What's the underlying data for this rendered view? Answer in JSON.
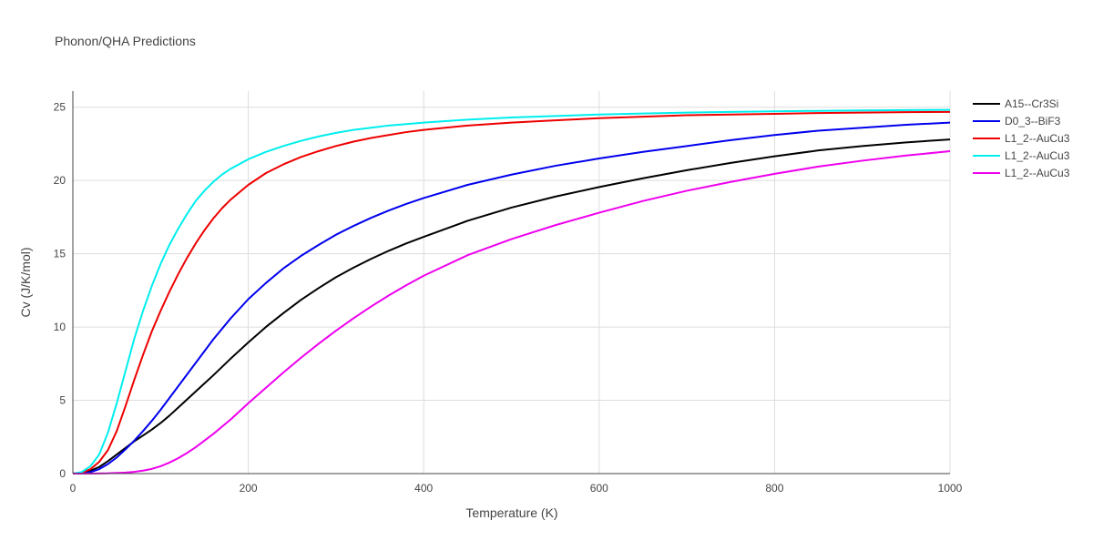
{
  "chart_data": {
    "type": "line",
    "title": "Phonon/QHA Predictions",
    "xlabel": "Temperature (K)",
    "ylabel": "Cv (J/K/mol)",
    "xlim": [
      0,
      1000
    ],
    "ylim": [
      0,
      26.1
    ],
    "xticks": [
      0,
      200,
      400,
      600,
      800,
      1000
    ],
    "yticks": [
      0,
      5,
      10,
      15,
      20,
      25
    ],
    "grid": true,
    "legend_position": "top-right",
    "series": [
      {
        "name": "A15--Cr3Si",
        "color": "#000000",
        "points": [
          [
            0,
            0
          ],
          [
            10,
            0.05
          ],
          [
            20,
            0.2
          ],
          [
            30,
            0.45
          ],
          [
            40,
            0.85
          ],
          [
            50,
            1.3
          ],
          [
            60,
            1.75
          ],
          [
            70,
            2.2
          ],
          [
            80,
            2.6
          ],
          [
            90,
            3.0
          ],
          [
            100,
            3.45
          ],
          [
            110,
            3.95
          ],
          [
            120,
            4.5
          ],
          [
            130,
            5.05
          ],
          [
            140,
            5.6
          ],
          [
            150,
            6.15
          ],
          [
            160,
            6.7
          ],
          [
            180,
            7.85
          ],
          [
            200,
            8.95
          ],
          [
            220,
            10.0
          ],
          [
            240,
            10.95
          ],
          [
            260,
            11.85
          ],
          [
            280,
            12.65
          ],
          [
            300,
            13.4
          ],
          [
            320,
            14.05
          ],
          [
            340,
            14.65
          ],
          [
            360,
            15.2
          ],
          [
            380,
            15.7
          ],
          [
            400,
            16.15
          ],
          [
            450,
            17.25
          ],
          [
            500,
            18.15
          ],
          [
            550,
            18.9
          ],
          [
            600,
            19.55
          ],
          [
            650,
            20.15
          ],
          [
            700,
            20.7
          ],
          [
            750,
            21.2
          ],
          [
            800,
            21.65
          ],
          [
            850,
            22.05
          ],
          [
            900,
            22.35
          ],
          [
            950,
            22.6
          ],
          [
            1000,
            22.8
          ]
        ]
      },
      {
        "name": "D0_3--BiF3",
        "color": "#0000ee",
        "points": [
          [
            0,
            0
          ],
          [
            10,
            0.02
          ],
          [
            20,
            0.1
          ],
          [
            30,
            0.3
          ],
          [
            40,
            0.65
          ],
          [
            50,
            1.1
          ],
          [
            60,
            1.65
          ],
          [
            70,
            2.25
          ],
          [
            80,
            2.9
          ],
          [
            90,
            3.6
          ],
          [
            100,
            4.35
          ],
          [
            110,
            5.15
          ],
          [
            120,
            5.95
          ],
          [
            130,
            6.75
          ],
          [
            140,
            7.55
          ],
          [
            150,
            8.35
          ],
          [
            160,
            9.15
          ],
          [
            180,
            10.6
          ],
          [
            200,
            11.9
          ],
          [
            220,
            13.0
          ],
          [
            240,
            14.0
          ],
          [
            260,
            14.85
          ],
          [
            280,
            15.6
          ],
          [
            300,
            16.3
          ],
          [
            320,
            16.9
          ],
          [
            340,
            17.45
          ],
          [
            360,
            17.95
          ],
          [
            380,
            18.4
          ],
          [
            400,
            18.8
          ],
          [
            450,
            19.7
          ],
          [
            500,
            20.4
          ],
          [
            550,
            21.0
          ],
          [
            600,
            21.5
          ],
          [
            650,
            21.95
          ],
          [
            700,
            22.35
          ],
          [
            750,
            22.75
          ],
          [
            800,
            23.1
          ],
          [
            850,
            23.4
          ],
          [
            900,
            23.6
          ],
          [
            950,
            23.8
          ],
          [
            1000,
            23.95
          ]
        ]
      },
      {
        "name": "L1_2--AuCu3",
        "color": "#ee0000",
        "points": [
          [
            0,
            0
          ],
          [
            10,
            0.05
          ],
          [
            20,
            0.3
          ],
          [
            30,
            0.8
          ],
          [
            40,
            1.6
          ],
          [
            50,
            2.9
          ],
          [
            60,
            4.6
          ],
          [
            70,
            6.4
          ],
          [
            80,
            8.1
          ],
          [
            90,
            9.7
          ],
          [
            100,
            11.1
          ],
          [
            110,
            12.4
          ],
          [
            120,
            13.6
          ],
          [
            130,
            14.7
          ],
          [
            140,
            15.7
          ],
          [
            150,
            16.6
          ],
          [
            160,
            17.4
          ],
          [
            170,
            18.1
          ],
          [
            180,
            18.7
          ],
          [
            200,
            19.7
          ],
          [
            220,
            20.5
          ],
          [
            240,
            21.1
          ],
          [
            260,
            21.6
          ],
          [
            280,
            22.0
          ],
          [
            300,
            22.35
          ],
          [
            320,
            22.65
          ],
          [
            340,
            22.9
          ],
          [
            360,
            23.1
          ],
          [
            380,
            23.3
          ],
          [
            400,
            23.45
          ],
          [
            450,
            23.75
          ],
          [
            500,
            23.95
          ],
          [
            550,
            24.1
          ],
          [
            600,
            24.25
          ],
          [
            650,
            24.35
          ],
          [
            700,
            24.45
          ],
          [
            750,
            24.5
          ],
          [
            800,
            24.55
          ],
          [
            850,
            24.6
          ],
          [
            900,
            24.63
          ],
          [
            950,
            24.66
          ],
          [
            1000,
            24.68
          ]
        ]
      },
      {
        "name": "L1_2--AuCu3",
        "color": "#00eeee",
        "points": [
          [
            0,
            0
          ],
          [
            10,
            0.1
          ],
          [
            20,
            0.5
          ],
          [
            30,
            1.3
          ],
          [
            40,
            2.8
          ],
          [
            50,
            4.8
          ],
          [
            60,
            7.0
          ],
          [
            70,
            9.2
          ],
          [
            80,
            11.1
          ],
          [
            90,
            12.8
          ],
          [
            100,
            14.3
          ],
          [
            110,
            15.6
          ],
          [
            120,
            16.7
          ],
          [
            130,
            17.7
          ],
          [
            140,
            18.6
          ],
          [
            150,
            19.3
          ],
          [
            160,
            19.9
          ],
          [
            170,
            20.4
          ],
          [
            180,
            20.8
          ],
          [
            200,
            21.45
          ],
          [
            220,
            21.95
          ],
          [
            240,
            22.35
          ],
          [
            260,
            22.7
          ],
          [
            280,
            23.0
          ],
          [
            300,
            23.25
          ],
          [
            320,
            23.45
          ],
          [
            340,
            23.6
          ],
          [
            360,
            23.75
          ],
          [
            380,
            23.85
          ],
          [
            400,
            23.95
          ],
          [
            450,
            24.15
          ],
          [
            500,
            24.3
          ],
          [
            550,
            24.4
          ],
          [
            600,
            24.5
          ],
          [
            650,
            24.57
          ],
          [
            700,
            24.63
          ],
          [
            750,
            24.68
          ],
          [
            800,
            24.72
          ],
          [
            850,
            24.75
          ],
          [
            900,
            24.78
          ],
          [
            950,
            24.8
          ],
          [
            1000,
            24.82
          ]
        ]
      },
      {
        "name": "L1_2--AuCu3",
        "color": "#ee00ee",
        "points": [
          [
            0,
            0
          ],
          [
            20,
            0
          ],
          [
            40,
            0.02
          ],
          [
            60,
            0.07
          ],
          [
            70,
            0.12
          ],
          [
            80,
            0.2
          ],
          [
            90,
            0.32
          ],
          [
            100,
            0.5
          ],
          [
            110,
            0.75
          ],
          [
            120,
            1.05
          ],
          [
            130,
            1.4
          ],
          [
            140,
            1.8
          ],
          [
            150,
            2.25
          ],
          [
            160,
            2.7
          ],
          [
            170,
            3.2
          ],
          [
            180,
            3.7
          ],
          [
            200,
            4.8
          ],
          [
            220,
            5.85
          ],
          [
            240,
            6.9
          ],
          [
            260,
            7.9
          ],
          [
            280,
            8.85
          ],
          [
            300,
            9.75
          ],
          [
            320,
            10.6
          ],
          [
            340,
            11.4
          ],
          [
            360,
            12.15
          ],
          [
            380,
            12.85
          ],
          [
            400,
            13.5
          ],
          [
            450,
            14.9
          ],
          [
            500,
            16.0
          ],
          [
            550,
            16.95
          ],
          [
            600,
            17.8
          ],
          [
            650,
            18.6
          ],
          [
            700,
            19.3
          ],
          [
            750,
            19.9
          ],
          [
            800,
            20.45
          ],
          [
            850,
            20.95
          ],
          [
            900,
            21.35
          ],
          [
            950,
            21.7
          ],
          [
            1000,
            22.0
          ]
        ]
      }
    ]
  }
}
